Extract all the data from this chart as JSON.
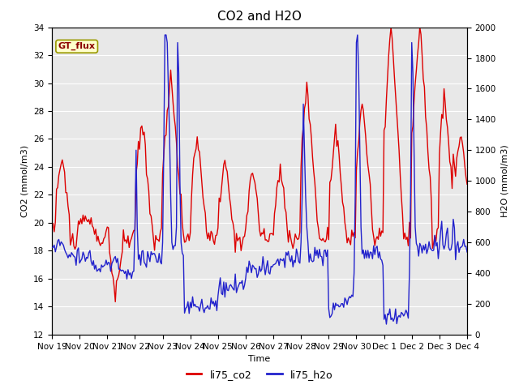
{
  "title": "CO2 and H2O",
  "xlabel": "Time",
  "ylabel_left": "CO2 (mmol/m3)",
  "ylabel_right": "H2O (mmol/m3)",
  "ylim_left": [
    12,
    34
  ],
  "ylim_right": [
    0,
    2000
  ],
  "yticks_left": [
    12,
    14,
    16,
    18,
    20,
    22,
    24,
    26,
    28,
    30,
    32,
    34
  ],
  "yticks_right": [
    0,
    200,
    400,
    600,
    800,
    1000,
    1200,
    1400,
    1600,
    1800,
    2000
  ],
  "color_co2": "#dd0000",
  "color_h2o": "#2222cc",
  "line_width": 1.0,
  "annotation_text": "GT_flux",
  "legend_labels": [
    "li75_co2",
    "li75_h2o"
  ],
  "background_color": "#ffffff",
  "axes_bg_color": "#e8e8e8",
  "grid_color": "#ffffff",
  "title_fontsize": 11,
  "axes_label_fontsize": 8,
  "tick_fontsize": 7.5
}
